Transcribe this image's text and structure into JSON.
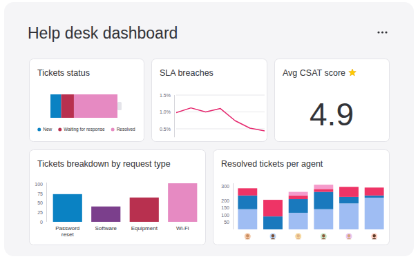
{
  "header": {
    "title": "Help desk dashboard"
  },
  "kpi": {
    "title": "Avg CSAT score",
    "value": 4.9
  },
  "chart_data": [
    {
      "type": "bar",
      "title": "Tickets status",
      "orientation": "horizontal",
      "stacked": true,
      "categories": [
        null
      ],
      "series": [
        {
          "name": "New",
          "color": "#0a82c3",
          "values": [
            16
          ]
        },
        {
          "name": "Waiting for response",
          "color": "#b8304f",
          "values": [
            19
          ]
        },
        {
          "name": "Resolved",
          "color": "#e68ac2",
          "values": [
            65
          ]
        }
      ],
      "xlim": [
        0,
        100
      ],
      "tick_labels": false,
      "legend": "bottom"
    },
    {
      "type": "line",
      "title": "SLA breaches",
      "categories": [
        null,
        null,
        null,
        null,
        null,
        null,
        null
      ],
      "values": [
        0.98,
        1.12,
        1.0,
        1.1,
        0.74,
        0.52,
        0.44
      ],
      "color": "#e5266d",
      "ylim": [
        0.25,
        1.5
      ],
      "yticks": [
        {
          "value": 0.5,
          "label": "0.5%"
        },
        {
          "value": 1,
          "label": "1.0%"
        },
        {
          "value": 1.5,
          "label": "1.5%"
        }
      ],
      "grid": true,
      "tick_labels": "y"
    },
    {
      "type": "bar",
      "title": "Tickets breakdown by request type",
      "categories": [
        "Password reset",
        "Software",
        "Equipment",
        "Wi-Fi"
      ],
      "values": [
        74,
        41,
        65,
        103
      ],
      "colors": [
        "#0a82c3",
        "#7b3f8c",
        "#b8304f",
        "#e68ac2"
      ],
      "ylim": [
        0,
        105
      ],
      "yticks": [
        0,
        25,
        50,
        75,
        100
      ],
      "grid": false
    },
    {
      "type": "bar",
      "title": "Resolved tickets per agent",
      "stacked": true,
      "categories": [
        null,
        null,
        null,
        null,
        null,
        null
      ],
      "series": [
        {
          "color": "#9fbdf3",
          "values": [
            140,
            0,
            115,
            140,
            180,
            220
          ]
        },
        {
          "color": "#1979bd",
          "values": [
            95,
            90,
            95,
            120,
            45,
            15
          ]
        },
        {
          "color": "#ee3466",
          "values": [
            50,
            115,
            25,
            20,
            70,
            55
          ]
        },
        {
          "color": "#f59bcb",
          "values": [
            0,
            0,
            25,
            30,
            0,
            0
          ]
        }
      ],
      "ylim": [
        0,
        320
      ],
      "yticks": [
        50,
        100,
        150,
        200,
        300
      ],
      "grid": false,
      "tick_labels": "y"
    }
  ]
}
